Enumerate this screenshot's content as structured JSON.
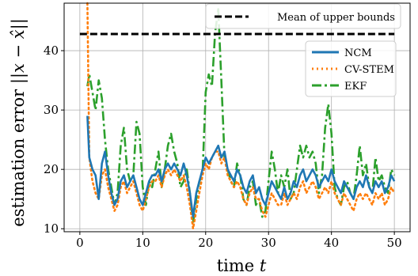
{
  "chart_data": {
    "type": "line",
    "xlabel": "time t",
    "ylabel": "estimation error ||x − x̂||",
    "xlim": [
      -2.5,
      52.5
    ],
    "ylim": [
      9.5,
      48
    ],
    "xticks": [
      0,
      10,
      20,
      30,
      40,
      50
    ],
    "yticks": [
      10,
      20,
      30,
      40
    ],
    "grid": true,
    "reference_line": {
      "label": "Mean of upper bounds",
      "y": 42.8,
      "x_range": [
        0,
        50
      ],
      "color": "#000000"
    },
    "legend_placement": "upper right",
    "series": [
      {
        "name": "NCM",
        "color": "#1f77b4",
        "style": "solid",
        "x": [
          1.2,
          1.5,
          2,
          2.5,
          3,
          3.5,
          4,
          4.5,
          5,
          5.5,
          6,
          6.5,
          7,
          7.5,
          8,
          8.5,
          9,
          9.5,
          10,
          10.5,
          11,
          11.5,
          12,
          12.5,
          13,
          13.5,
          14,
          14.5,
          15,
          15.5,
          16,
          16.5,
          17,
          17.5,
          18,
          18.5,
          19,
          19.5,
          20,
          20.5,
          21,
          21.5,
          22,
          22.5,
          23,
          23.5,
          24,
          24.5,
          25,
          25.5,
          26,
          26.5,
          27,
          27.5,
          28,
          28.5,
          29,
          29.5,
          30,
          30.5,
          31,
          31.5,
          32,
          32.5,
          33,
          33.5,
          34,
          34.5,
          35,
          35.5,
          36,
          36.5,
          37,
          37.5,
          38,
          38.5,
          39,
          39.5,
          40,
          40.5,
          41,
          41.5,
          42,
          42.5,
          43,
          43.5,
          44,
          44.5,
          45,
          45.5,
          46,
          46.5,
          47,
          47.5,
          48,
          48.5,
          49,
          49.5,
          50
        ],
        "y": [
          29,
          22,
          20,
          19,
          15,
          21,
          23,
          19,
          16,
          14,
          15,
          18,
          19,
          17,
          18,
          19,
          17,
          15,
          14,
          16,
          18,
          19,
          19,
          20,
          18,
          20,
          21,
          20,
          21,
          20,
          19,
          21,
          19,
          16,
          12,
          16,
          18,
          20,
          22,
          21,
          22,
          23,
          24,
          22,
          23,
          20,
          19,
          18,
          20,
          19,
          17,
          16,
          18,
          19,
          16,
          17,
          15,
          14,
          16,
          18,
          17,
          16,
          15,
          17,
          15,
          16,
          18,
          17,
          19,
          20,
          18,
          19,
          20,
          19,
          17,
          18,
          19,
          18,
          20,
          18,
          17,
          16,
          18,
          17,
          16,
          15,
          17,
          18,
          17,
          19,
          17,
          16,
          18,
          17,
          18,
          16,
          17,
          19,
          18
        ]
      },
      {
        "name": "CV-STEM",
        "color": "#ff7f0e",
        "style": "dotted",
        "x": [
          1.2,
          1.5,
          2,
          2.5,
          3,
          3.5,
          4,
          4.5,
          5,
          5.5,
          6,
          6.5,
          7,
          7.5,
          8,
          8.5,
          9,
          9.5,
          10,
          10.5,
          11,
          11.5,
          12,
          12.5,
          13,
          13.5,
          14,
          14.5,
          15,
          15.5,
          16,
          16.5,
          17,
          17.5,
          18,
          18.5,
          19,
          19.5,
          20,
          20.5,
          21,
          21.5,
          22,
          22.5,
          23,
          23.5,
          24,
          24.5,
          25,
          25.5,
          26,
          26.5,
          27,
          27.5,
          28,
          28.5,
          29,
          29.5,
          30,
          30.5,
          31,
          31.5,
          32,
          32.5,
          33,
          33.5,
          34,
          34.5,
          35,
          35.5,
          36,
          36.5,
          37,
          37.5,
          38,
          38.5,
          39,
          39.5,
          40,
          40.5,
          41,
          41.5,
          42,
          42.5,
          43,
          43.5,
          44,
          44.5,
          45,
          45.5,
          46,
          46.5,
          47,
          47.5,
          48,
          48.5,
          49,
          49.5,
          50
        ],
        "y": [
          48,
          22,
          18,
          16,
          15,
          19,
          20,
          17,
          15,
          13,
          14,
          17,
          18,
          16,
          17,
          18,
          16,
          14,
          13,
          15,
          17,
          18,
          18,
          19,
          17,
          19,
          20,
          19,
          20,
          19,
          18,
          19,
          17,
          14,
          10,
          13,
          16,
          19,
          21,
          20,
          22,
          23,
          23,
          21,
          22,
          19,
          18,
          17,
          18,
          17,
          15,
          14,
          16,
          17,
          15,
          15,
          13,
          12,
          14,
          16,
          15,
          14,
          14,
          16,
          14,
          15,
          16,
          15,
          17,
          18,
          16,
          17,
          18,
          17,
          15,
          16,
          17,
          16,
          18,
          16,
          15,
          14,
          16,
          15,
          14,
          13,
          15,
          16,
          15,
          16,
          15,
          14,
          16,
          15,
          16,
          14,
          15,
          17,
          16
        ]
      },
      {
        "name": "EKF",
        "color": "#2ca02c",
        "style": "dashdot",
        "x": [
          1.2,
          1.5,
          2,
          2.5,
          3,
          3.5,
          4,
          4.5,
          5,
          5.5,
          6,
          6.5,
          7,
          7.5,
          8,
          8.5,
          9,
          9.5,
          10,
          10.5,
          11,
          11.5,
          12,
          12.5,
          13,
          13.5,
          14,
          14.5,
          15,
          15.5,
          16,
          16.5,
          17,
          17.5,
          18,
          18.5,
          19,
          19.5,
          20,
          20.5,
          21,
          21.5,
          22,
          22.5,
          23,
          23.5,
          24,
          24.5,
          25,
          25.5,
          26,
          26.5,
          27,
          27.5,
          28,
          28.5,
          29,
          29.5,
          30,
          30.5,
          31,
          31.5,
          32,
          32.5,
          33,
          33.5,
          34,
          34.5,
          35,
          35.5,
          36,
          36.5,
          37,
          37.5,
          38,
          38.5,
          39,
          39.5,
          40,
          40.5,
          41,
          41.5,
          42,
          42.5,
          43,
          43.5,
          44,
          44.5,
          45,
          45.5,
          46,
          46.5,
          47,
          47.5,
          48,
          48.5,
          49,
          49.5,
          50
        ],
        "y": [
          34,
          36,
          33,
          30,
          35,
          32,
          25,
          20,
          17,
          14,
          16,
          24,
          27,
          20,
          18,
          19,
          28,
          26,
          17,
          14,
          18,
          17,
          20,
          23,
          17,
          20,
          24,
          26,
          23,
          21,
          17,
          18,
          20,
          16,
          11,
          15,
          18,
          19,
          33,
          36,
          34,
          43,
          47,
          35,
          22,
          20,
          18,
          17,
          21,
          19,
          15,
          14,
          17,
          18,
          14,
          15,
          12,
          13,
          18,
          23,
          20,
          16,
          19,
          17,
          20,
          15,
          16,
          20,
          24,
          22,
          24,
          22,
          23,
          21,
          16,
          19,
          27,
          31,
          26,
          17,
          15,
          14,
          17,
          18,
          16,
          15,
          19,
          24,
          19,
          21,
          17,
          16,
          22,
          18,
          19,
          17,
          16,
          20,
          19
        ]
      }
    ]
  }
}
